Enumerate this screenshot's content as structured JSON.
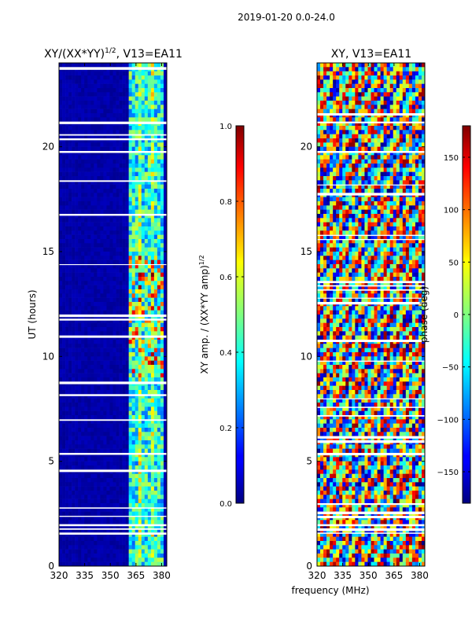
{
  "figure": {
    "suptitle": "2019-01-20 0.0-24.0",
    "xlabel_shared": "frequency (MHz)"
  },
  "chart_data": [
    {
      "type": "heatmap",
      "title_main": "XY/(XX*YY)",
      "title_sup": "1/2",
      "title_rest": ", V13=EA11",
      "xlabel": "frequency (MHz)",
      "ylabel": "UT (hours)",
      "xlim": [
        320,
        383
      ],
      "ylim": [
        0,
        24
      ],
      "xticks": [
        "320",
        "335",
        "350",
        "365",
        "380"
      ],
      "yticks": [
        "0",
        "5",
        "10",
        "15",
        "20"
      ],
      "colormap": "jet",
      "colorbar": {
        "label_main": "XY amp. / (XX*YY amp)",
        "label_sup": "1/2",
        "range": [
          0.0,
          1.0
        ],
        "ticks": [
          "0.0",
          "0.2",
          "0.4",
          "0.6",
          "0.8",
          "1.0"
        ]
      }
    },
    {
      "type": "heatmap",
      "title_main": "XY, V13=EA11",
      "xlabel": "frequency (MHz)",
      "ylabel": "",
      "xlim": [
        320,
        383
      ],
      "ylim": [
        0,
        24
      ],
      "xticks": [
        "320",
        "335",
        "350",
        "365",
        "380"
      ],
      "yticks": [
        "0",
        "5",
        "10",
        "15",
        "20"
      ],
      "colormap": "jet",
      "colorbar": {
        "label_main": "phase (deg)",
        "range": [
          -180,
          180
        ],
        "ticks": [
          "-150",
          "-100",
          "-50",
          "0",
          "50",
          "100",
          "150"
        ]
      }
    }
  ]
}
